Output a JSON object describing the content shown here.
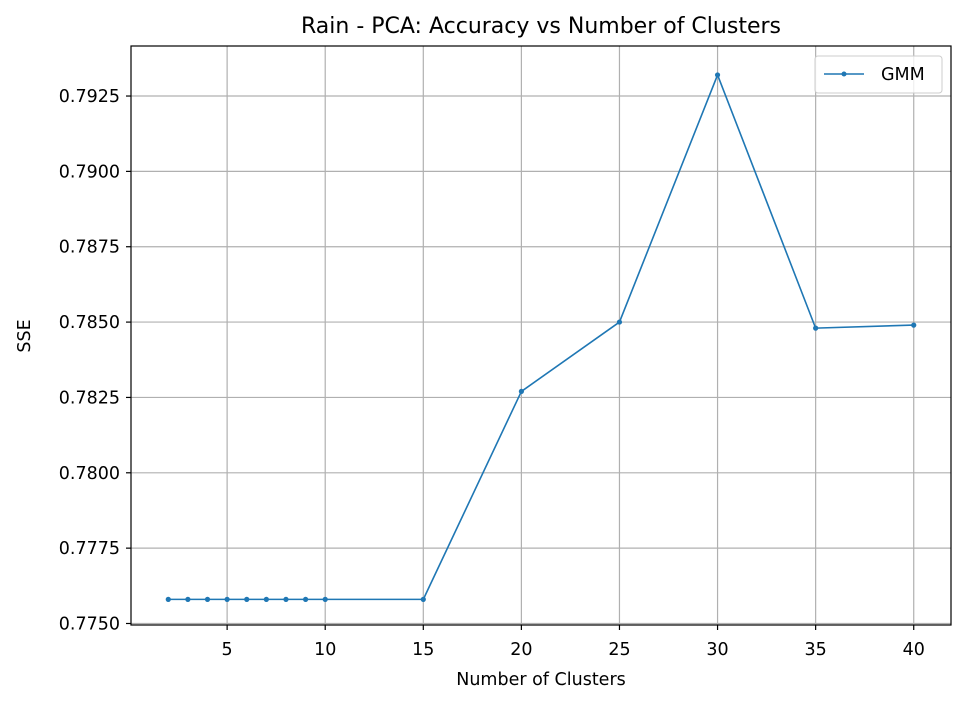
{
  "chart_data": {
    "type": "line",
    "title": "Rain - PCA: Accuracy vs Number of Clusters",
    "xlabel": "Number of Clusters",
    "ylabel": "SSE",
    "xlim": [
      0.1,
      41.9
    ],
    "ylim": [
      0.77495,
      0.79416
    ],
    "xticks": [
      5,
      10,
      15,
      20,
      25,
      30,
      35,
      40
    ],
    "xtick_labels": [
      "5",
      "10",
      "15",
      "20",
      "25",
      "30",
      "35",
      "40"
    ],
    "yticks": [
      0.775,
      0.7775,
      0.78,
      0.7825,
      0.785,
      0.7875,
      0.79,
      0.7925
    ],
    "ytick_labels": [
      "0.7750",
      "0.7775",
      "0.7800",
      "0.7825",
      "0.7850",
      "0.7875",
      "0.7900",
      "0.7925"
    ],
    "grid": true,
    "legend_position": "top-right",
    "series": [
      {
        "name": "GMM",
        "color": "#1f77b4",
        "x": [
          2,
          3,
          4,
          5,
          6,
          7,
          8,
          9,
          10,
          15,
          20,
          25,
          30,
          35,
          40
        ],
        "y": [
          0.7758,
          0.7758,
          0.7758,
          0.7758,
          0.7758,
          0.7758,
          0.7758,
          0.7758,
          0.7758,
          0.7758,
          0.7827,
          0.785,
          0.7932,
          0.7848,
          0.7849
        ]
      }
    ]
  }
}
